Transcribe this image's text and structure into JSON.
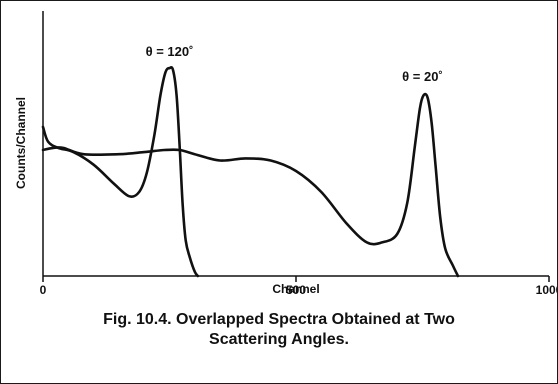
{
  "chart_data": {
    "type": "line",
    "title": "",
    "xlabel": "Channel",
    "ylabel": "Counts/Channel",
    "xlim": [
      0,
      1000
    ],
    "ylim": [
      0,
      100
    ],
    "x_ticks": [
      "0",
      "500",
      "1000"
    ],
    "grid": false,
    "legend": "none",
    "annotations": [
      {
        "text": "θ = 120˚",
        "x": 250,
        "y": 100
      },
      {
        "text": "θ = 20˚",
        "x": 750,
        "y": 88
      }
    ],
    "series": [
      {
        "x": [
          0,
          10,
          30,
          60,
          100,
          140,
          170,
          190,
          205,
          220,
          232,
          242,
          250,
          257,
          264,
          270,
          276,
          282,
          290,
          300,
          306
        ],
        "y": [
          71,
          64,
          61,
          59,
          53,
          44,
          38,
          40,
          49,
          67,
          86,
          97,
          99,
          98,
          86,
          62,
          34,
          17,
          9,
          2,
          0
        ]
      },
      {
        "x": [
          0,
          20,
          40,
          80,
          150,
          200,
          240,
          270,
          300,
          350,
          400,
          450,
          500,
          550,
          600,
          640,
          670,
          700,
          720,
          735,
          745,
          752,
          760,
          768,
          776,
          785,
          795,
          810,
          820
        ],
        "y": [
          60,
          61,
          61,
          58,
          58,
          59,
          60,
          60,
          58,
          55,
          56,
          55,
          50,
          40,
          25,
          16,
          16,
          20,
          35,
          62,
          80,
          86,
          85,
          73,
          52,
          28,
          13,
          5,
          0
        ]
      }
    ]
  },
  "caption": {
    "line1": "Fig. 10.4.  Overlapped Spectra Obtained at Two",
    "line2": "Scattering Angles."
  }
}
